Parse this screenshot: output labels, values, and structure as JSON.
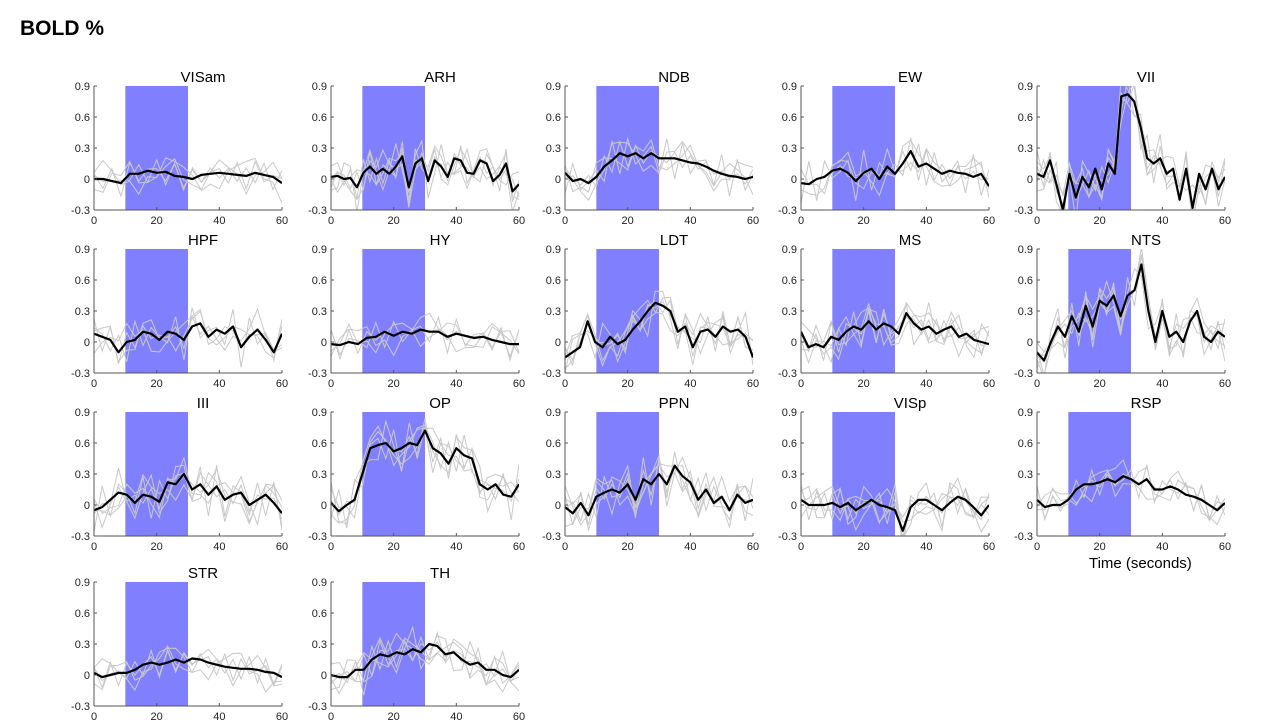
{
  "figure": {
    "title": "BOLD %",
    "xlabel": "Time (seconds)"
  },
  "colors": {
    "stim": "#8080ff",
    "mean": "#000000",
    "trial": "#c8c8c8",
    "axis": "#555555"
  },
  "chart_data": {
    "type": "line",
    "x_range": [
      0,
      60
    ],
    "y_range": [
      -0.3,
      0.9
    ],
    "x_ticks": [
      0,
      20,
      40,
      60
    ],
    "y_ticks": [
      -0.3,
      0,
      0.3,
      0.6,
      0.9
    ],
    "y_tick_labels": [
      "-0.3",
      "0",
      "0.3",
      "0.6",
      "0.9"
    ],
    "stimulus_window": [
      10,
      30
    ],
    "panels": [
      {
        "name": "VISam",
        "trials": 4,
        "mean": [
          0,
          0,
          -0.02,
          -0.04,
          0.05,
          0.05,
          0.08,
          0.06,
          0.07,
          0.03,
          0.02,
          0,
          0.04,
          0.05,
          0.06,
          0.05,
          0.04,
          0.03,
          0.06,
          0.04,
          0.02,
          -0.04
        ]
      },
      {
        "name": "ARH",
        "trials": 5,
        "mean": [
          0.02,
          0.03,
          0,
          0.01,
          -0.08,
          0.06,
          0.12,
          0.05,
          0.1,
          0.05,
          0.12,
          0.22,
          -0.08,
          0.15,
          0.2,
          -0.02,
          0.18,
          0.12,
          0.02,
          0.2,
          0.18,
          0.06,
          0.05,
          0.18,
          0.15,
          -0.02,
          0.04,
          0.15,
          -0.12,
          -0.05
        ]
      },
      {
        "name": "NDB",
        "trials": 4,
        "mean": [
          0.06,
          -0.02,
          0,
          -0.04,
          0.02,
          0.12,
          0.18,
          0.25,
          0.22,
          0.25,
          0.2,
          0.25,
          0.2,
          0.2,
          0.2,
          0.18,
          0.16,
          0.15,
          0.12,
          0.08,
          0.05,
          0.03,
          0.02,
          0,
          0.02
        ]
      },
      {
        "name": "EW",
        "trials": 4,
        "mean": [
          -0.04,
          -0.05,
          0,
          0.02,
          0.08,
          0.1,
          0.06,
          -0.02,
          0.06,
          0.1,
          0,
          0.12,
          0.05,
          0.15,
          0.27,
          0.12,
          0.15,
          0.1,
          0.05,
          0.08,
          0.06,
          0.05,
          0.02,
          0.05,
          -0.07
        ]
      },
      {
        "name": "VII",
        "trials": 5,
        "mean": [
          0.05,
          0.02,
          0.18,
          -0.05,
          -0.3,
          0.05,
          -0.18,
          0.02,
          -0.08,
          0.1,
          -0.1,
          0.15,
          0.05,
          0.8,
          0.82,
          0.75,
          0.5,
          0.2,
          0.15,
          0.2,
          0.05,
          0.1,
          -0.2,
          0.1,
          -0.28,
          0.05,
          -0.1,
          0.1,
          -0.1,
          0.02
        ]
      },
      {
        "name": "HPF",
        "trials": 4,
        "mean": [
          0.08,
          0.05,
          0.02,
          -0.1,
          0,
          0.02,
          0.1,
          0.08,
          0.02,
          0.1,
          0.08,
          0.02,
          0.15,
          0.18,
          0.05,
          0.12,
          0.08,
          0.15,
          -0.05,
          0.05,
          0.12,
          0.02,
          -0.1,
          0.08
        ]
      },
      {
        "name": "HY",
        "trials": 4,
        "mean": [
          -0.02,
          -0.03,
          0,
          -0.02,
          0.04,
          0.05,
          0.1,
          0.06,
          0.1,
          0.08,
          0.12,
          0.1,
          0.1,
          0.05,
          0.08,
          0.06,
          0.04,
          0.05,
          0.02,
          0,
          -0.02,
          -0.02
        ]
      },
      {
        "name": "LDT",
        "trials": 5,
        "mean": [
          -0.15,
          -0.1,
          -0.05,
          0.2,
          0,
          -0.05,
          0.05,
          -0.02,
          0.02,
          0.12,
          0.2,
          0.3,
          0.38,
          0.35,
          0.3,
          0.1,
          0.15,
          -0.05,
          0.1,
          0.12,
          0.05,
          0.15,
          0.1,
          0.12,
          0.05,
          -0.15
        ]
      },
      {
        "name": "MS",
        "trials": 5,
        "mean": [
          0.1,
          -0.05,
          -0.02,
          -0.05,
          0.05,
          0.02,
          0.1,
          0.15,
          0.12,
          0.2,
          0.12,
          0.18,
          0.15,
          0.08,
          0.28,
          0.18,
          0.12,
          0.15,
          0.08,
          0.12,
          0.15,
          0.05,
          0.08,
          0.02,
          0,
          -0.02
        ]
      },
      {
        "name": "NTS",
        "trials": 5,
        "mean": [
          -0.1,
          -0.18,
          0,
          0.15,
          0.05,
          0.25,
          0.1,
          0.35,
          0.15,
          0.4,
          0.35,
          0.45,
          0.25,
          0.45,
          0.5,
          0.75,
          0.3,
          0,
          0.3,
          0.05,
          0.1,
          0,
          0.2,
          0.3,
          0.05,
          0,
          0.1,
          0.05
        ]
      },
      {
        "name": "III",
        "trials": 5,
        "mean": [
          -0.05,
          -0.02,
          0.05,
          0.12,
          0.1,
          0.02,
          0.1,
          0.08,
          0.03,
          0.22,
          0.2,
          0.3,
          0.15,
          0.2,
          0.1,
          0.18,
          0.05,
          0.1,
          0.12,
          0,
          0.05,
          0.1,
          0.02,
          -0.08
        ]
      },
      {
        "name": "OP",
        "trials": 5,
        "mean": [
          0.02,
          -0.06,
          0,
          0.05,
          0.3,
          0.55,
          0.58,
          0.6,
          0.52,
          0.55,
          0.6,
          0.58,
          0.72,
          0.55,
          0.5,
          0.4,
          0.55,
          0.48,
          0.45,
          0.2,
          0.15,
          0.2,
          0.1,
          0.08,
          0.2
        ]
      },
      {
        "name": "PPN",
        "trials": 5,
        "mean": [
          -0.02,
          -0.08,
          0.02,
          -0.1,
          0.08,
          0.12,
          0.15,
          0.12,
          0.2,
          0.05,
          0.25,
          0.2,
          0.3,
          0.2,
          0.38,
          0.28,
          0.22,
          0.05,
          0.15,
          0.02,
          0.08,
          -0.05,
          0.1,
          0.02,
          0.05
        ]
      },
      {
        "name": "VISp",
        "trials": 5,
        "mean": [
          0.05,
          0,
          0,
          0,
          0.02,
          -0.02,
          0.02,
          -0.05,
          0,
          0.05,
          0,
          -0.02,
          -0.05,
          -0.25,
          -0.02,
          0.05,
          0.05,
          0,
          -0.05,
          0.02,
          0.08,
          0.05,
          -0.02,
          -0.1,
          0
        ]
      },
      {
        "name": "RSP",
        "trials": 4,
        "mean": [
          0.05,
          -0.02,
          0,
          0,
          0.05,
          0.15,
          0.2,
          0.2,
          0.22,
          0.25,
          0.22,
          0.28,
          0.25,
          0.2,
          0.25,
          0.15,
          0.15,
          0.18,
          0.15,
          0.1,
          0.08,
          0.05,
          0,
          -0.05,
          0.02
        ]
      },
      {
        "name": "STR",
        "trials": 4,
        "mean": [
          0.02,
          -0.02,
          0,
          0.02,
          0.02,
          0.05,
          0.1,
          0.12,
          0.1,
          0.12,
          0.15,
          0.12,
          0.16,
          0.15,
          0.12,
          0.1,
          0.08,
          0.07,
          0.06,
          0.06,
          0.05,
          0.03,
          0.02,
          -0.02
        ]
      },
      {
        "name": "TH",
        "trials": 5,
        "mean": [
          0,
          -0.02,
          -0.02,
          0.05,
          0.05,
          0.15,
          0.2,
          0.18,
          0.22,
          0.2,
          0.25,
          0.22,
          0.3,
          0.28,
          0.2,
          0.22,
          0.15,
          0.1,
          0.12,
          0.05,
          0.05,
          0,
          -0.02,
          0.05
        ]
      }
    ]
  }
}
